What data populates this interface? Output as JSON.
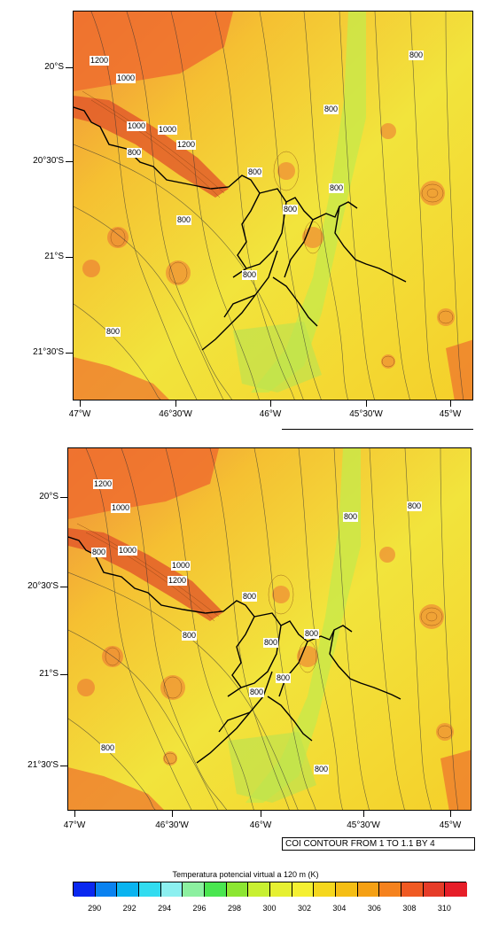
{
  "panels": [
    {
      "y_labels": [
        "20°S",
        "20°30'S",
        "21°S",
        "21°30'S"
      ],
      "x_labels": [
        "47°W",
        "46°30'W",
        "46°W",
        "45°30'W",
        "45°W"
      ],
      "contour_labels": [
        "1200",
        "1000",
        "1000",
        "1000",
        "1200",
        "800",
        "800",
        "800",
        "800",
        "800",
        "800",
        "800",
        "800",
        "800"
      ]
    },
    {
      "y_labels": [
        "20°S",
        "20°30'S",
        "21°S",
        "21°30'S"
      ],
      "x_labels": [
        "47°W",
        "46°30'W",
        "46°W",
        "45°30'W",
        "45°W"
      ],
      "contour_labels": [
        "1200",
        "1000",
        "1000",
        "800",
        "1000",
        "1200",
        "800",
        "800",
        "800",
        "800",
        "800",
        "800",
        "800",
        "800",
        "800",
        "800"
      ],
      "info_text": "COI CONTOUR FROM 1 TO 1.1 BY 4"
    }
  ],
  "colorbar": {
    "title": "Temperatura potencial virtual a 120 m  (K)",
    "ticks": [
      "290",
      "292",
      "294",
      "296",
      "298",
      "300",
      "302",
      "304",
      "306",
      "308",
      "310"
    ],
    "colors": [
      "#0a28f0",
      "#0a82f0",
      "#0ab4f0",
      "#32dcf0",
      "#8cf0f0",
      "#8cf0a0",
      "#4ae650",
      "#8ce632",
      "#c8f032",
      "#e6f032",
      "#f5f032",
      "#f5d71e",
      "#f5be14",
      "#f5a014",
      "#f5821e",
      "#f05a23",
      "#e63c28",
      "#e61e28"
    ]
  }
}
